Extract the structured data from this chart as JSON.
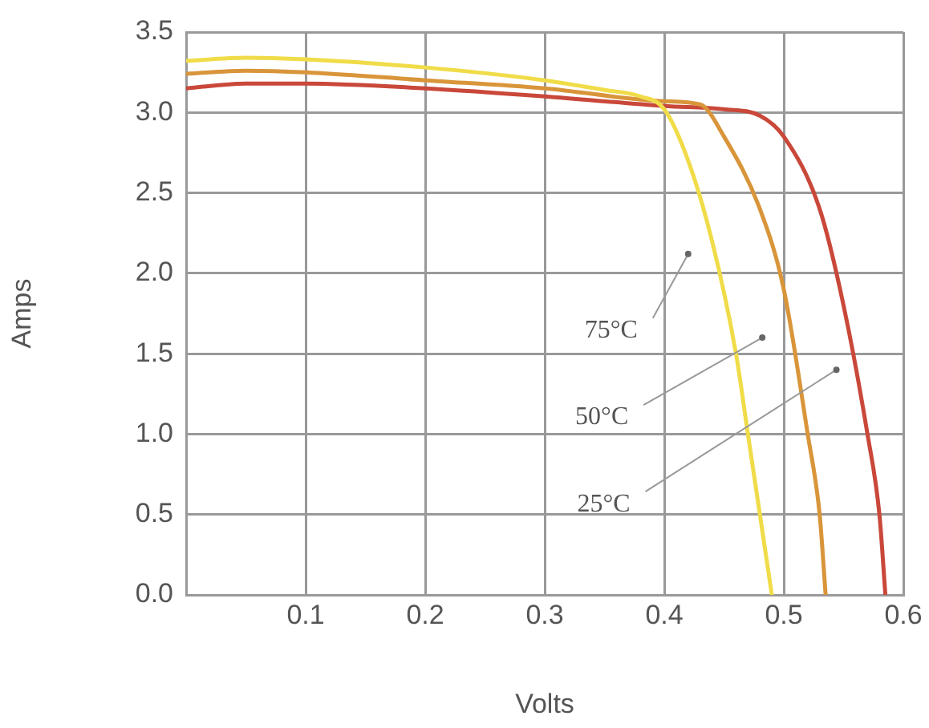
{
  "chart_data": {
    "type": "line",
    "xlabel": "Volts",
    "ylabel": "Amps",
    "xlim": [
      0,
      0.6
    ],
    "xticks": [
      0.1,
      0.2,
      0.3,
      0.4,
      0.5,
      0.6
    ],
    "ylim": [
      0,
      3.5
    ],
    "yticks": [
      {
        "value": 0,
        "label": "0.0"
      },
      {
        "value": 0.5,
        "label": "0.5"
      },
      {
        "value": 1,
        "label": "1.0"
      },
      {
        "value": 1.5,
        "label": "1.5"
      },
      {
        "value": 2,
        "label": "2.0"
      },
      {
        "value": 2.5,
        "label": "2.5"
      },
      {
        "value": 3,
        "label": "3.0"
      },
      {
        "value": 3.5,
        "label": "3.5"
      }
    ],
    "grid": true,
    "marker": "none",
    "line_style": "solid",
    "series": [
      {
        "color": "#f0dc48",
        "x": [
          0,
          0.05,
          0.1,
          0.2,
          0.3,
          0.35,
          0.38,
          0.4,
          0.42,
          0.44,
          0.46,
          0.47,
          0.48,
          0.49
        ],
        "values": [
          3.32,
          3.34,
          3.33,
          3.28,
          3.2,
          3.14,
          3.1,
          3.02,
          2.7,
          2.2,
          1.5,
          1.0,
          0.5,
          0
        ]
      },
      {
        "color": "#d9953a",
        "x": [
          0,
          0.05,
          0.1,
          0.2,
          0.3,
          0.4,
          0.43,
          0.45,
          0.48,
          0.5,
          0.52,
          0.53,
          0.535
        ],
        "values": [
          3.24,
          3.26,
          3.25,
          3.2,
          3.15,
          3.07,
          3.05,
          2.85,
          2.4,
          1.9,
          1.0,
          0.5,
          0
        ]
      },
      {
        "color": "#c9483a",
        "x": [
          0,
          0.05,
          0.1,
          0.2,
          0.3,
          0.4,
          0.45,
          0.48,
          0.5,
          0.53,
          0.55,
          0.57,
          0.58,
          0.585
        ],
        "values": [
          3.15,
          3.18,
          3.18,
          3.15,
          3.1,
          3.04,
          3.02,
          2.98,
          2.85,
          2.4,
          1.8,
          1.0,
          0.5,
          0
        ]
      }
    ],
    "annotations": [
      {
        "text": "75°C",
        "x": 0.42,
        "y": 2.12
      },
      {
        "text": "50°C",
        "x": 0.482,
        "y": 1.6
      },
      {
        "text": "25°C",
        "x": 0.544,
        "y": 1.4
      }
    ]
  }
}
